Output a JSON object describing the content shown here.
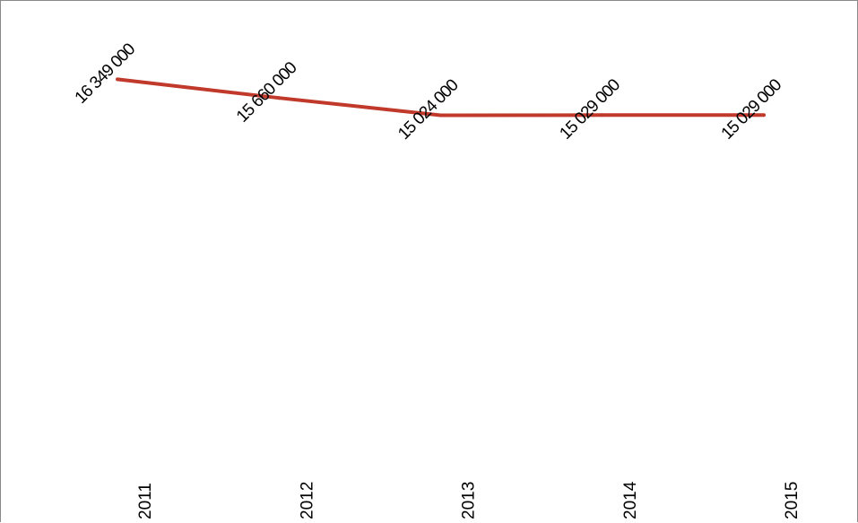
{
  "chart_data": {
    "type": "line",
    "title": "",
    "xlabel": "",
    "ylabel": "",
    "categories": [
      "2011",
      "2012",
      "2013",
      "2014",
      "2015"
    ],
    "series": [
      {
        "values": [
          16349000,
          15660000,
          15024000,
          15029000,
          15029000
        ],
        "labels": [
          "16 349 000",
          "15 660 000",
          "15 024 000",
          "15 029 000",
          "15 029 000"
        ],
        "color": "#c0392b"
      }
    ],
    "ylim": [
      0,
      17000000
    ],
    "grid": false,
    "legend": "none"
  }
}
